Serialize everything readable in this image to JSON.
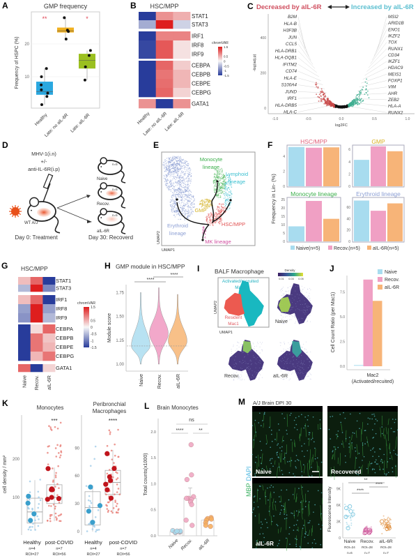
{
  "A": {
    "label": "A",
    "title": "GMP frequency",
    "ylabel": "Frequency of HSPC (%)",
    "yticks": [
      "10",
      "20"
    ],
    "groups": [
      {
        "name": "Healthy",
        "color": "#2aa8e0",
        "sig": "**",
        "box": [
          4.5,
          5.5,
          8.5
        ],
        "whisk": [
          1.5,
          12.5
        ],
        "points": [
          1.5,
          4,
          5,
          6,
          7.5,
          10,
          12.5
        ]
      },
      {
        "name": "Late: no aIL-6R",
        "color": "#f0b020",
        "sig": "",
        "box": [
          23.5,
          24,
          25
        ],
        "whisk": [
          21.5,
          28
        ],
        "points": [
          21.5,
          23.8,
          24.2,
          28
        ]
      },
      {
        "name": "Late: aIL-6R",
        "color": "#9bc020",
        "sig": "*",
        "box": [
          12.5,
          15,
          17
        ],
        "whisk": [
          9,
          18
        ],
        "points": [
          9,
          13,
          16.5,
          18
        ]
      }
    ]
  },
  "B": {
    "label": "B",
    "title": "HSC/MPP",
    "columns": [
      "Healthy",
      "Late: no aIL-6R",
      "Late: aIL-6R"
    ],
    "rows": [
      "STAT1",
      "STAT3",
      "IRF1",
      "IRF8",
      "IRF9",
      "CEBPA",
      "CEBPB",
      "CEBPE",
      "CEBPG",
      "GATA1"
    ],
    "values": [
      [
        -1.5,
        0.7,
        0.5
      ],
      [
        -0.6,
        1.5,
        -0.3
      ],
      [
        -1.5,
        0.8,
        0.8
      ],
      [
        -1.4,
        1.1,
        0.15
      ],
      [
        -1.4,
        1.1,
        0.15
      ],
      [
        -1.5,
        1.0,
        0.3
      ],
      [
        -1.5,
        0.9,
        0.45
      ],
      [
        -1.5,
        0.95,
        0.45
      ],
      [
        -1.5,
        1.0,
        0.25
      ],
      [
        0.7,
        -1.5,
        0.7
      ]
    ],
    "legend_title": "chromVAR",
    "legend_ticks": [
      "1.5",
      "0.5",
      "0",
      "-0.5",
      "-1",
      "-1.5"
    ]
  },
  "C": {
    "label": "C",
    "title_left": "Decreased by aIL-6R",
    "title_right": "Increased by aIL-6R",
    "left_color": "#d05060",
    "right_color": "#5bbfd0",
    "ylabel": "-log(adj.p)",
    "xlabel": "log2FC",
    "yticks": [
      "0",
      "200",
      "400"
    ],
    "xticks": [
      "-1.0",
      "-0.5",
      "0.0",
      "0.5",
      "1.0"
    ],
    "genes_left": [
      "B2M",
      "HLA-B",
      "H3F3B",
      "JUN",
      "CCL5",
      "HLA-DRB1",
      "HLA-DQB1",
      "IFITM2",
      "CD74",
      "HLA-E",
      "S100A4",
      "JUND",
      "IRF1",
      "HLA-DRB5",
      "HLA-C"
    ],
    "genes_right": [
      "MSI2",
      "ARID1B",
      "ENO1",
      "IKZF2",
      "TOX",
      "RUNX1",
      "CD34",
      "IKZF1",
      "HDAC9",
      "MEIS1",
      "FOXP1",
      "VIM",
      "AHR",
      "ZEB2",
      "HLA-A",
      "RUNX2"
    ]
  },
  "D": {
    "label": "D",
    "treatment": [
      "MHV-1(i.n)",
      "+/-",
      "anti-IL-6R(i.p)"
    ],
    "strain": "WT A/J",
    "day0": "Day 0: Treatment",
    "day30": "Day 30: Recoverd",
    "groups": [
      {
        "name": "Naive",
        "n": "n=5"
      },
      {
        "name": "Recov.",
        "n": "n=5"
      },
      {
        "name": "aIL-6R",
        "n": "n=5"
      }
    ]
  },
  "E": {
    "label": "E",
    "monocyte": [
      "Monocyte",
      "lineage"
    ],
    "lymphoid": [
      "Lymphoid",
      "lineage"
    ],
    "gmp": "GMP",
    "hsc": "HSC/MPP",
    "erythroid": [
      "Erythroid",
      "lineage"
    ],
    "mk": "MK lineage",
    "xlabel": "UMAP1",
    "ylabel": "UMAP2",
    "colors": {
      "monocyte": "#3aae4a",
      "lymphoid": "#3cc0d0",
      "gmp": "#d4b020",
      "hsc": "#e05050",
      "erythroid": "#8c9fd4",
      "mk": "#d050a0"
    }
  },
  "F": {
    "label": "F",
    "ylabel": "Frequency in Lin- (%)",
    "legend": [
      "Naive(n=5)",
      "Recov.(n=5)",
      "aIL-6R(n=5)"
    ],
    "colors": [
      "#a8dcef",
      "#f0a0c4",
      "#f7b478"
    ],
    "subplots": [
      {
        "title": "HSC/MPP",
        "title_color": "#e0607a",
        "values": [
          5.25,
          5.15,
          5.2
        ],
        "yticks": [
          "0",
          "2",
          "4"
        ],
        "ymax": 5.5
      },
      {
        "title": "GMP",
        "title_color": "#d8b020",
        "values": [
          4.3,
          6.5,
          5.7
        ],
        "yticks": [
          "0",
          "2",
          "4",
          "6"
        ],
        "ymax": 6.7
      },
      {
        "title": "Monocyte lineage",
        "title_color": "#3aae4a",
        "values": [
          9,
          24.2,
          13.5
        ],
        "yticks": [
          "0",
          "5",
          "10",
          "15",
          "20",
          "25"
        ],
        "ymax": 26.3
      },
      {
        "title": "Erythroid lineage",
        "title_color": "#8c9fd4",
        "values": [
          72,
          54,
          67
        ],
        "yticks": [
          "0",
          "20",
          "40",
          "60"
        ],
        "ymax": 77.5
      }
    ]
  },
  "G": {
    "label": "G",
    "title": "HSC/MPP",
    "columns": [
      "Naive",
      "Recov.",
      "aIL-6R"
    ],
    "rows": [
      "STAT1",
      "STAT3",
      "IRF1",
      "IRF8",
      "IRF9",
      "CEBPA",
      "CEBPB",
      "CEBPE",
      "CEBPG",
      "GATA1"
    ],
    "values": [
      [
        0.4,
        1.0,
        -1.5
      ],
      [
        -0.5,
        1.5,
        -0.9
      ],
      [
        0.4,
        1.0,
        -1.5
      ],
      [
        -0.7,
        1.5,
        -0.7
      ],
      [
        -0.8,
        1.5,
        -0.5
      ],
      [
        -1.5,
        0.2,
        1.0
      ],
      [
        -1.5,
        0.9,
        0.35
      ],
      [
        -1.5,
        0.9,
        0.45
      ],
      [
        -1.5,
        0.45,
        0.9
      ],
      [
        1.0,
        -1.5,
        0.25
      ]
    ],
    "legend_title": "chromVAR",
    "legend_ticks": [
      "1.5",
      "0.5",
      "0",
      "-0.5",
      "-1",
      "-1.5"
    ]
  },
  "H": {
    "label": "H",
    "title": "GMP module in HSC/MPP",
    "ylabel": "Module score",
    "yticks": [
      "1.00",
      "1.25",
      "1.50",
      "1.75"
    ],
    "reference_line": 1.19,
    "sig": [
      "****",
      "****"
    ],
    "groups": [
      {
        "name": "Naive",
        "min": 1.0,
        "max": 1.75,
        "mode": 1.19,
        "color": "#b8e2f2"
      },
      {
        "name": "Recov.",
        "min": 1.0,
        "max": 1.8,
        "mode": 1.32,
        "color": "#f2a8ca"
      },
      {
        "name": "aIL-6R",
        "min": 1.0,
        "max": 1.73,
        "mode": 1.24,
        "color": "#f8c088"
      }
    ]
  },
  "I": {
    "label": "I",
    "title": "BALF Macrophage",
    "density_title": "Density",
    "density_ticks": [
      "0.01",
      "0.03",
      "0.05"
    ],
    "mac2": [
      "Activated/recruited",
      "Mac2"
    ],
    "mac1": [
      "Resident",
      "Mac1"
    ],
    "xlabel": "UMAP1",
    "ylabel": "UMAP2",
    "maps": [
      "Naive",
      "Recov.",
      "aIL-6R"
    ]
  },
  "J": {
    "label": "J",
    "ylabel": "Cell Count Ratio (per Mac1)",
    "xlabel": [
      "Mac2",
      "(Activated/recuited)"
    ],
    "yticks": [
      "0.0",
      "2.5",
      "5.0",
      "7.5"
    ],
    "series": [
      {
        "name": "Naive",
        "value": 0.05,
        "color": "#a8dcef"
      },
      {
        "name": "Recov.",
        "value": 8.75,
        "color": "#f0a0c4"
      },
      {
        "name": "aIL-6R",
        "value": 6.6,
        "color": "#f7b478"
      }
    ]
  },
  "K": {
    "label": "K",
    "ylabel": "cell density / mm²",
    "panels": [
      {
        "title": [
          "Monocytes"
        ],
        "sig": "***",
        "yticks": [
          "100",
          "200"
        ],
        "groups": [
          {
            "name": "Healthy",
            "n": "n=4",
            "roi": "ROI=27",
            "box": [
              33,
              62,
              98
            ],
            "whisk": [
              15,
              145
            ],
            "donors": [
              103,
              85,
              57,
              40
            ],
            "range": [
              15,
              150
            ]
          },
          {
            "name": "post-COVID",
            "n": "n=7",
            "roi": "ROI=56",
            "box": [
              84,
              100,
              133
            ],
            "whisk": [
              38,
              178
            ],
            "donors": [
              175,
              122,
              120,
              100,
              97,
              95,
              120
            ],
            "range": [
              38,
              300
            ]
          }
        ]
      },
      {
        "title": [
          "Peribronchial",
          "Macrophages"
        ],
        "sig": "****",
        "yticks": [
          "0",
          "30",
          "60",
          "90"
        ],
        "groups": [
          {
            "name": "Healthy",
            "n": "n=4",
            "roi": "ROI=27",
            "box": [
              7,
              26,
              43
            ],
            "whisk": [
              0,
              50
            ],
            "donors": [
              48,
              28,
              22,
              10
            ],
            "range": [
              0,
              100
            ]
          },
          {
            "name": "post-COVID",
            "n": "n=7",
            "roi": "ROI=56",
            "box": [
              40,
              53,
              66
            ],
            "whisk": [
              20,
              88
            ],
            "donors": [
              84,
              68,
              59,
              55,
              51,
              45,
              36
            ],
            "range": [
              20,
              110
            ]
          }
        ]
      }
    ]
  },
  "L": {
    "label": "L",
    "title": "Brain Monocytes",
    "ylabel": "Total counts(x1000)",
    "yticks": [
      "0.0",
      "0.5",
      "1.0",
      "1.5",
      "2.0"
    ],
    "sig": {
      "ns": "ns",
      "naive_recov": "****",
      "recov_ail": "**"
    },
    "groups": [
      {
        "name": "Naive",
        "mean": 0.08,
        "err": 0.01,
        "color": "#a8dcef",
        "points": [
          0.06,
          0.07,
          0.08,
          0.08,
          0.09,
          0.1,
          0.07,
          0.09
        ]
      },
      {
        "name": "Recov.",
        "mean": 0.72,
        "err": 0.2,
        "color": "#f0a8c4",
        "points": [
          1.75,
          1.17,
          1.08,
          0.75,
          0.72,
          0.72,
          0.7,
          0.65,
          0.6,
          0.3,
          0.2
        ]
      },
      {
        "name": "aIL-6R",
        "mean": 0.3,
        "err": 0.03,
        "color": "#f7b060",
        "points": [
          0.35,
          0.33,
          0.32,
          0.3,
          0.25,
          0.2,
          0.18
        ]
      }
    ]
  },
  "M": {
    "label": "M",
    "title": "A/J Brain DPI 30",
    "stain": [
      "MBP",
      "DAPI"
    ],
    "images": [
      "Naive",
      "Recovered",
      "aIL-6R"
    ],
    "ylabel": "Fluorescence Intensity",
    "yticks": [
      "0",
      "3K",
      "6K",
      "9K"
    ],
    "sig": [
      "**",
      "****",
      "****"
    ],
    "groups": [
      {
        "name": "Naive",
        "roi": "ROI=24",
        "n": "n=6",
        "color": "#7ec8e0",
        "center": 4000
      },
      {
        "name": "Recov.",
        "roi": "ROI=28",
        "n": "n=7",
        "color": "#d060a0",
        "center": 1300
      },
      {
        "name": "aIL-6R",
        "roi": "ROI=28",
        "n": "n=7",
        "color": "#e09040",
        "center": 2600
      }
    ]
  }
}
